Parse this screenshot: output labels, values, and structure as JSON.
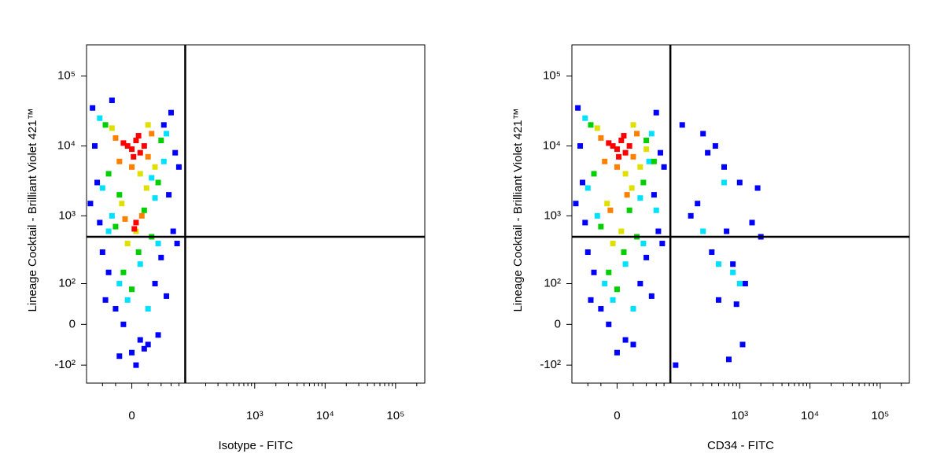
{
  "chart_data": [
    {
      "type": "scatter",
      "xlabel": "Isotype - FITC",
      "ylabel": "Lineage Cocktail - Brilliant Violet 421™",
      "scale": "biex",
      "xlim": [
        -75,
        260000
      ],
      "ylim": [
        -190,
        280000
      ],
      "xticks": [
        0,
        {
          "value": 1000,
          "label": "10³"
        },
        {
          "value": 10000,
          "label": "10⁴"
        },
        {
          "value": 100000,
          "label": "10⁵"
        }
      ],
      "xminor": [
        -40,
        -20,
        20,
        40,
        60,
        80,
        200,
        300,
        400,
        500,
        600,
        700,
        800,
        900,
        2000,
        3000,
        4000,
        5000,
        6000,
        7000,
        8000,
        9000,
        20000,
        30000,
        40000,
        50000,
        60000,
        70000,
        80000,
        90000,
        200000
      ],
      "yticks": [
        {
          "value": -100,
          "label": "-10²"
        },
        0,
        {
          "value": 100,
          "label": "10²"
        },
        {
          "value": 1000,
          "label": "10³"
        },
        {
          "value": 10000,
          "label": "10⁴"
        },
        {
          "value": 100000,
          "label": "10⁵"
        }
      ],
      "gate": {
        "x": 100,
        "y": 500
      },
      "series": [
        {
          "color": "#0000ff",
          "x": [
            -60,
            60,
            -55,
            70,
            -50,
            55,
            -45,
            65,
            80,
            -40,
            40,
            -30,
            30,
            -20,
            20,
            0,
            10,
            -10,
            50,
            -65,
            75,
            -35,
            35,
            5,
            -25,
            45,
            -15,
            15
          ],
          "values": [
            35000,
            30000,
            10000,
            8000,
            3000,
            2000,
            800,
            600,
            5000,
            300,
            250,
            150,
            100,
            30,
            -40,
            -60,
            -30,
            0,
            60,
            1500,
            400,
            50,
            -20,
            -100,
            45000,
            20000,
            -70,
            -50
          ]
        },
        {
          "color": "#00e0ff",
          "x": [
            -45,
            50,
            -40,
            45,
            30,
            -25,
            10,
            -15,
            35,
            -5,
            20,
            -30,
            25
          ],
          "values": [
            25000,
            15000,
            2500,
            6000,
            1800,
            1000,
            200,
            100,
            400,
            50,
            30,
            600,
            3500
          ]
        },
        {
          "color": "#00d000",
          "x": [
            -35,
            40,
            -30,
            35,
            15,
            -20,
            8,
            -10,
            25,
            0,
            -15
          ],
          "values": [
            20000,
            12000,
            4000,
            3000,
            1200,
            700,
            300,
            150,
            500,
            80,
            2000
          ]
        },
        {
          "color": "#e0e000",
          "x": [
            -25,
            30,
            10,
            -12,
            18,
            5,
            -5,
            20
          ],
          "values": [
            18000,
            5000,
            4000,
            1500,
            2500,
            600,
            400,
            20000
          ]
        },
        {
          "color": "#ff8000",
          "x": [
            -20,
            20,
            -15,
            25,
            0,
            12,
            -8
          ],
          "values": [
            13000,
            7000,
            6000,
            15000,
            5000,
            1000,
            900
          ]
        },
        {
          "color": "#ff0000",
          "x": [
            -5,
            5,
            10,
            0,
            -10,
            15,
            8,
            2,
            5,
            3
          ],
          "values": [
            10000,
            12000,
            8000,
            9000,
            11000,
            10000,
            14000,
            7000,
            800,
            650
          ]
        }
      ]
    },
    {
      "type": "scatter",
      "xlabel": "CD34 - FITC",
      "ylabel": "Lineage Cocktail - Brilliant Violet 421™",
      "scale": "biex",
      "xlim": [
        -75,
        260000
      ],
      "ylim": [
        -190,
        280000
      ],
      "xticks": [
        0,
        {
          "value": 1000,
          "label": "10³"
        },
        {
          "value": 10000,
          "label": "10⁴"
        },
        {
          "value": 100000,
          "label": "10⁵"
        }
      ],
      "xminor": [
        -40,
        -20,
        20,
        40,
        60,
        80,
        200,
        300,
        400,
        500,
        600,
        700,
        800,
        900,
        2000,
        3000,
        4000,
        5000,
        6000,
        7000,
        8000,
        9000,
        20000,
        30000,
        40000,
        50000,
        60000,
        70000,
        80000,
        90000,
        200000
      ],
      "yticks": [
        {
          "value": -100,
          "label": "-10²"
        },
        0,
        {
          "value": 100,
          "label": "10²"
        },
        {
          "value": 1000,
          "label": "10³"
        },
        {
          "value": 10000,
          "label": "10⁴"
        },
        {
          "value": 100000,
          "label": "10⁵"
        }
      ],
      "gate": {
        "x": 100,
        "y": 500
      },
      "series": [
        {
          "color": "#0000ff",
          "x": [
            -60,
            60,
            -55,
            70,
            -50,
            55,
            -45,
            65,
            80,
            -40,
            40,
            -30,
            30,
            -20,
            20,
            0,
            10,
            -10,
            50,
            -65,
            75,
            -35,
            150,
            300,
            600,
            1000,
            1500,
            2000,
            400,
            800,
            250,
            1200,
            500,
            700,
            350,
            900,
            200,
            1800,
            120,
            450,
            1100,
            650
          ],
          "values": [
            35000,
            30000,
            10000,
            8000,
            3000,
            2000,
            800,
            600,
            5000,
            300,
            250,
            150,
            100,
            30,
            -40,
            -60,
            -30,
            0,
            60,
            1500,
            400,
            50,
            20000,
            15000,
            5000,
            3000,
            800,
            500,
            300,
            200,
            1500,
            100,
            50,
            -80,
            8000,
            40,
            1000,
            2500,
            -100,
            10000,
            -40,
            600
          ]
        },
        {
          "color": "#00e0ff",
          "x": [
            -45,
            50,
            -40,
            45,
            30,
            -25,
            10,
            -15,
            35,
            -5,
            20,
            500,
            800,
            300,
            1000,
            600,
            60
          ],
          "values": [
            25000,
            15000,
            2500,
            6000,
            1800,
            1000,
            200,
            100,
            400,
            50,
            30,
            200,
            150,
            600,
            100,
            3000,
            1200
          ]
        },
        {
          "color": "#00d000",
          "x": [
            -35,
            40,
            -30,
            35,
            15,
            -20,
            8,
            -10,
            25,
            0,
            55
          ],
          "values": [
            20000,
            12000,
            4000,
            3000,
            1200,
            700,
            300,
            150,
            500,
            80,
            6000
          ]
        },
        {
          "color": "#e0e000",
          "x": [
            -25,
            30,
            10,
            -12,
            18,
            5,
            -5,
            20,
            40
          ],
          "values": [
            18000,
            5000,
            4000,
            1500,
            2500,
            600,
            400,
            20000,
            9000
          ]
        },
        {
          "color": "#ff8000",
          "x": [
            -20,
            20,
            -15,
            25,
            0,
            12,
            -8
          ],
          "values": [
            13000,
            7000,
            6000,
            15000,
            5000,
            2000,
            1200
          ]
        },
        {
          "color": "#ff0000",
          "x": [
            -5,
            5,
            10,
            0,
            -10,
            15,
            8,
            2
          ],
          "values": [
            10000,
            12000,
            8000,
            9000,
            11000,
            10000,
            14000,
            7000
          ]
        }
      ]
    }
  ]
}
